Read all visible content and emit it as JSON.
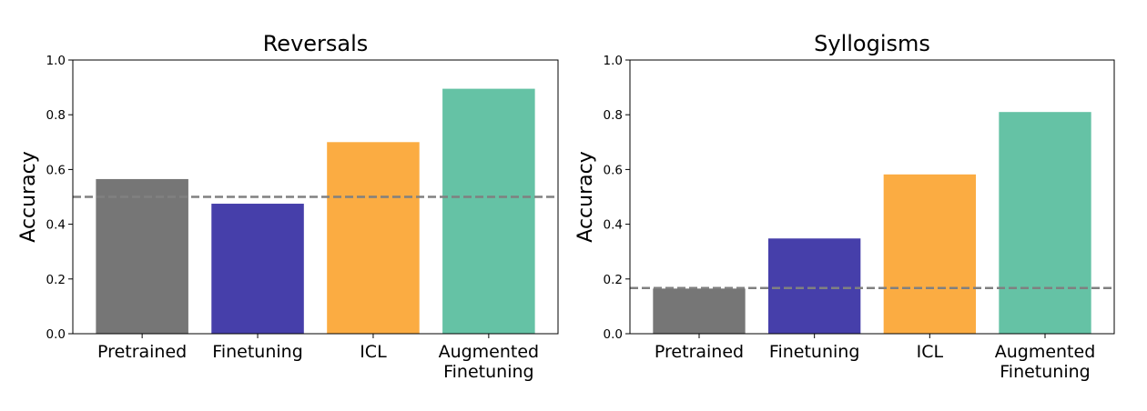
{
  "chart_data": [
    {
      "type": "bar",
      "title": "Reversals",
      "xlabel": "",
      "ylabel": "Accuracy",
      "ylim": [
        0,
        1.0
      ],
      "yticks": [
        "0.0",
        "0.2",
        "0.4",
        "0.6",
        "0.8",
        "1.0"
      ],
      "categories": [
        [
          "Pretrained"
        ],
        [
          "Finetuning"
        ],
        [
          "ICL"
        ],
        [
          "Augmented",
          "Finetuning"
        ]
      ],
      "values": [
        0.565,
        0.475,
        0.7,
        0.895
      ],
      "colors": [
        "#767676",
        "#463faa",
        "#fbac42",
        "#65c2a5"
      ],
      "baseline": 0.5,
      "baseline_color": "#808080",
      "grid": false
    },
    {
      "type": "bar",
      "title": "Syllogisms",
      "xlabel": "",
      "ylabel": "Accuracy",
      "ylim": [
        0,
        1.0
      ],
      "yticks": [
        "0.0",
        "0.2",
        "0.4",
        "0.6",
        "0.8",
        "1.0"
      ],
      "categories": [
        [
          "Pretrained"
        ],
        [
          "Finetuning"
        ],
        [
          "ICL"
        ],
        [
          "Augmented",
          "Finetuning"
        ]
      ],
      "values": [
        0.165,
        0.348,
        0.582,
        0.81
      ],
      "colors": [
        "#767676",
        "#463faa",
        "#fbac42",
        "#65c2a5"
      ],
      "baseline": 0.167,
      "baseline_color": "#808080",
      "grid": false
    }
  ]
}
